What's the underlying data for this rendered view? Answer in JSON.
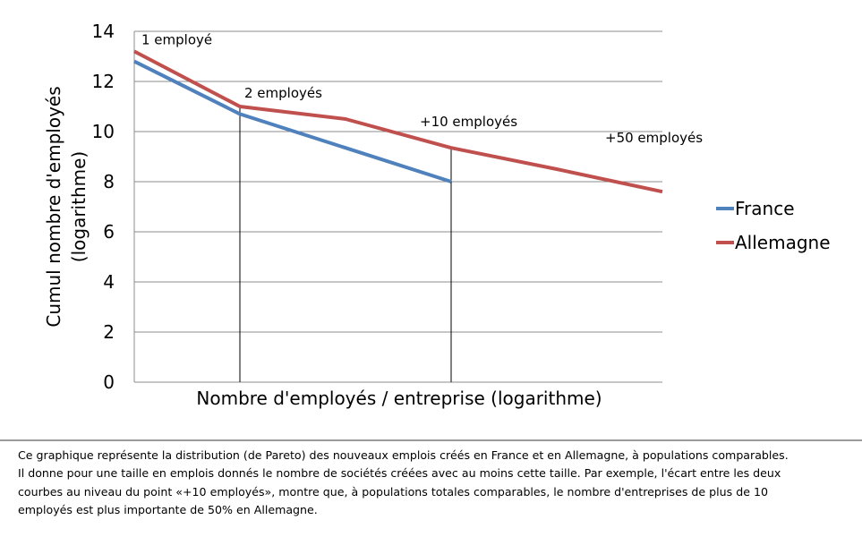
{
  "chart_data": {
    "type": "line",
    "title": "",
    "xlabel": "Nombre d'employés / entreprise (logarithme)",
    "ylabel": [
      "Cumul nombre d'employés",
      "(logarithme)"
    ],
    "ylim": [
      0,
      14
    ],
    "yticks": [
      0,
      2,
      4,
      6,
      8,
      10,
      12,
      14
    ],
    "grid": "horizontal",
    "legend": "right",
    "x": [
      0,
      1,
      2,
      3,
      4,
      5
    ],
    "series": [
      {
        "name": "France",
        "color": "#4f81bd",
        "values": [
          12.8,
          10.7,
          9.35,
          8.0,
          null,
          null
        ]
      },
      {
        "name": "Allemagne",
        "color": "#c0504d",
        "values": [
          13.2,
          11.0,
          10.5,
          9.35,
          8.5,
          7.6
        ]
      }
    ],
    "annotations": [
      {
        "text": "1 employé",
        "x": 0
      },
      {
        "text": "2 employés",
        "x": 1
      },
      {
        "text": "+10 employés",
        "x": 3
      },
      {
        "text": "+50 employés",
        "x": 4.5
      }
    ],
    "drop_lines_at_x": [
      1,
      3
    ]
  },
  "caption": [
    "Ce graphique représente la distribution (de Pareto) des nouveaux emplois créés en France et en Allemagne, à populations comparables.",
    "Il donne pour une taille en emplois donnés le nombre de sociétés créées avec au moins cette taille. Par exemple, l'écart entre les deux",
    "courbes au niveau du point «+10 employés», montre que, à populations totales comparables, le nombre d'entreprises de plus de 10",
    "employés est plus importante de 50% en Allemagne."
  ]
}
